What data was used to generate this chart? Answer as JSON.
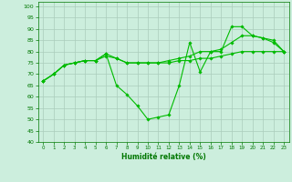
{
  "title": "",
  "xlabel": "Humidité relative (%)",
  "ylabel": "",
  "background_color": "#cceedd",
  "grid_color": "#aaccbb",
  "line_color": "#00bb00",
  "xlim": [
    -0.5,
    23.5
  ],
  "ylim": [
    40,
    102
  ],
  "yticks": [
    40,
    45,
    50,
    55,
    60,
    65,
    70,
    75,
    80,
    85,
    90,
    95,
    100
  ],
  "xticks": [
    0,
    1,
    2,
    3,
    4,
    5,
    6,
    7,
    8,
    9,
    10,
    11,
    12,
    13,
    14,
    15,
    16,
    17,
    18,
    19,
    20,
    21,
    22,
    23
  ],
  "series": [
    {
      "x": [
        0,
        1,
        2,
        3,
        4,
        5,
        6,
        7,
        8,
        9,
        10,
        11,
        12,
        13,
        14,
        15,
        16,
        17,
        18,
        19,
        20,
        21,
        22,
        23
      ],
      "y": [
        67,
        70,
        74,
        75,
        76,
        76,
        78,
        77,
        75,
        75,
        75,
        75,
        75,
        76,
        76,
        77,
        77,
        78,
        79,
        80,
        80,
        80,
        80,
        80
      ]
    },
    {
      "x": [
        0,
        1,
        2,
        3,
        4,
        5,
        6,
        7,
        8,
        9,
        10,
        11,
        12,
        13,
        14,
        15,
        16,
        17,
        18,
        19,
        20,
        21,
        22,
        23
      ],
      "y": [
        67,
        70,
        74,
        75,
        76,
        76,
        79,
        77,
        75,
        75,
        75,
        75,
        76,
        77,
        78,
        80,
        80,
        81,
        84,
        87,
        87,
        86,
        85,
        80
      ]
    },
    {
      "x": [
        0,
        1,
        2,
        3,
        4,
        5,
        6,
        7,
        8,
        9,
        10,
        11,
        12,
        13,
        14,
        15,
        16,
        17,
        18,
        19,
        20,
        21,
        22,
        23
      ],
      "y": [
        67,
        70,
        74,
        75,
        76,
        76,
        79,
        65,
        61,
        56,
        50,
        51,
        52,
        65,
        84,
        71,
        80,
        80,
        91,
        91,
        87,
        86,
        84,
        80
      ]
    }
  ]
}
